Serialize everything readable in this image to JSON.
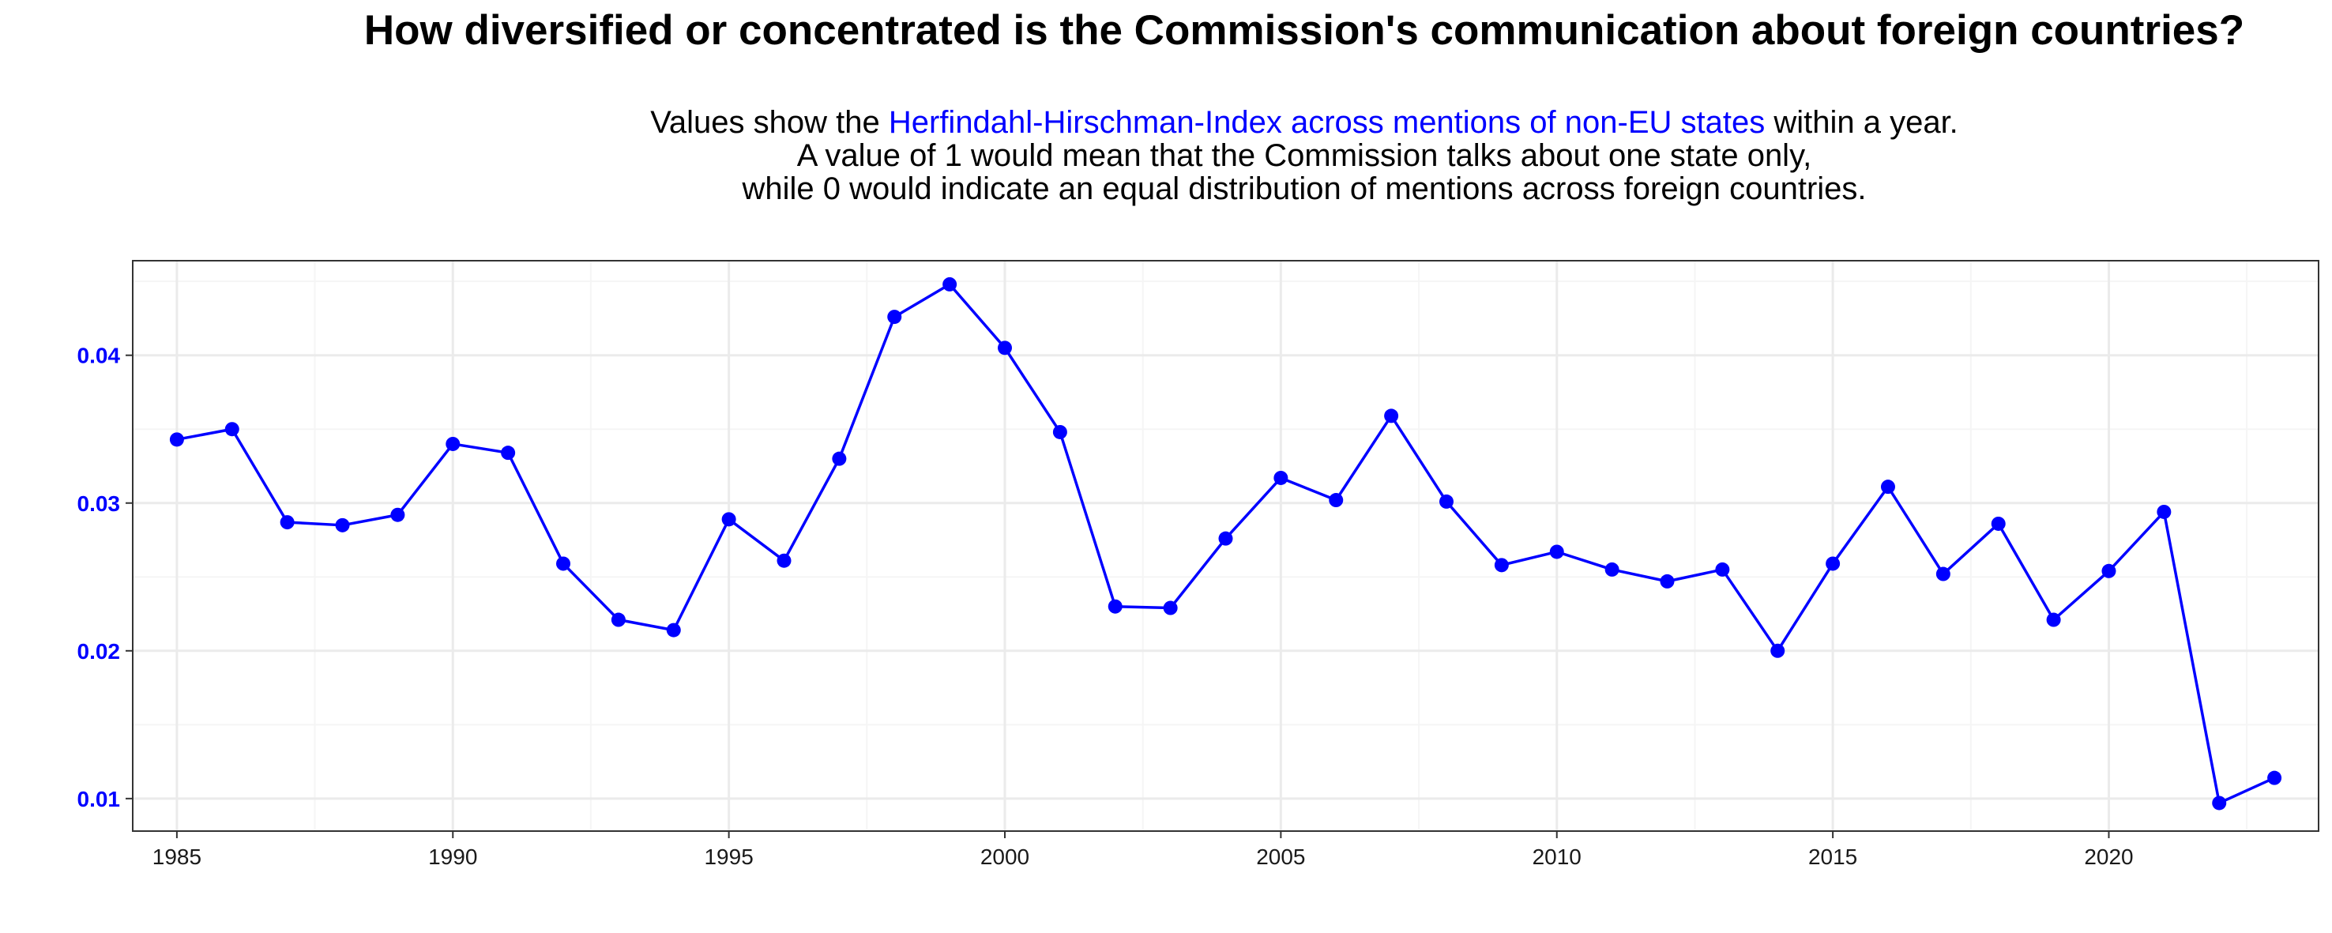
{
  "chart_data": {
    "type": "line",
    "title": "How diversified or concentrated is the Commission's communication about foreign countries?",
    "subtitle": {
      "line1_prefix": "Values show the ",
      "line1_highlight": "Herfindahl-Hirschman-Index across mentions of non-EU states",
      "line1_suffix": " within a year.",
      "line2": "A value of 1 would mean that the Commission talks about one state only,",
      "line3": "while 0 would indicate an equal distribution of mentions across foreign countries."
    },
    "xlabel": "",
    "ylabel": "",
    "x": [
      1985,
      1986,
      1987,
      1988,
      1989,
      1990,
      1991,
      1992,
      1993,
      1994,
      1995,
      1996,
      1997,
      1998,
      1999,
      2000,
      2001,
      2002,
      2003,
      2004,
      2005,
      2006,
      2007,
      2008,
      2009,
      2010,
      2011,
      2012,
      2013,
      2014,
      2015,
      2016,
      2017,
      2018,
      2019,
      2020,
      2021,
      2022,
      2023
    ],
    "series": [
      {
        "values": [
          0.0343,
          0.035,
          0.0287,
          0.0285,
          0.0292,
          0.034,
          0.0334,
          0.0259,
          0.0221,
          0.0214,
          0.0289,
          0.0261,
          0.033,
          0.0426,
          0.0448,
          0.0405,
          0.0348,
          0.023,
          0.0229,
          0.0276,
          0.0317,
          0.0302,
          0.0359,
          0.0301,
          0.0258,
          0.0267,
          0.0255,
          0.0247,
          0.0255,
          0.02,
          0.0259,
          0.0311,
          0.0252,
          0.0286,
          0.0221,
          0.0254,
          0.0294,
          0.0097,
          0.0114
        ],
        "color": "#0000ff"
      }
    ],
    "xlim": [
      1984.2,
      2023.8
    ],
    "ylim": [
      0.0078,
      0.0464
    ],
    "x_ticks": [
      "1985",
      "1990",
      "1995",
      "2000",
      "2005",
      "2010",
      "2015",
      "2020"
    ],
    "x_tick_values": [
      1985,
      1990,
      1995,
      2000,
      2005,
      2010,
      2015,
      2020
    ],
    "y_ticks": [
      "0.01",
      "0.02",
      "0.03",
      "0.04"
    ],
    "y_tick_values": [
      0.01,
      0.02,
      0.03,
      0.04
    ],
    "y_tick_color": "#0000ff",
    "grid": true,
    "legend": "none",
    "colors": {
      "line": "#0000ff",
      "grid_major": "#ebebeb",
      "grid_minor": "#f5f5f5",
      "panel_border": "#333333"
    }
  }
}
